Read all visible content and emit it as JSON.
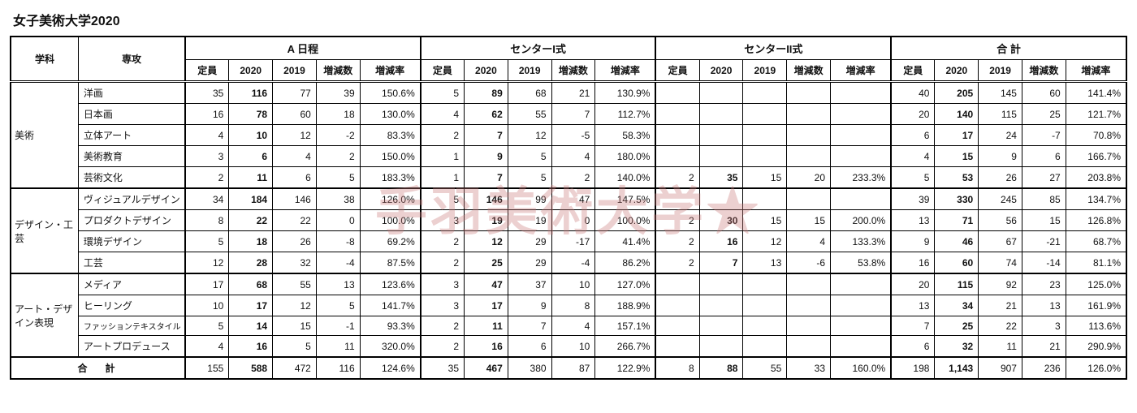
{
  "title": "女子美術大学2020",
  "watermark": "手羽美術大学★",
  "header": {
    "dept": "学科",
    "major": "専攻",
    "groups": [
      "A 日程",
      "センターI式",
      "センターII式",
      "合 計"
    ],
    "sub": [
      "定員",
      "2020",
      "2019",
      "増減数",
      "増減率"
    ]
  },
  "departments": [
    {
      "name": "美術",
      "rows": [
        {
          "major": "洋画",
          "a": [
            "35",
            "116",
            "77",
            "39",
            "150.6%"
          ],
          "c1": [
            "5",
            "89",
            "68",
            "21",
            "130.9%"
          ],
          "c2": [
            "",
            "",
            "",
            "",
            ""
          ],
          "t": [
            "40",
            "205",
            "145",
            "60",
            "141.4%"
          ]
        },
        {
          "major": "日本画",
          "a": [
            "16",
            "78",
            "60",
            "18",
            "130.0%"
          ],
          "c1": [
            "4",
            "62",
            "55",
            "7",
            "112.7%"
          ],
          "c2": [
            "",
            "",
            "",
            "",
            ""
          ],
          "t": [
            "20",
            "140",
            "115",
            "25",
            "121.7%"
          ]
        },
        {
          "major": "立体アート",
          "a": [
            "4",
            "10",
            "12",
            "-2",
            "83.3%"
          ],
          "c1": [
            "2",
            "7",
            "12",
            "-5",
            "58.3%"
          ],
          "c2": [
            "",
            "",
            "",
            "",
            ""
          ],
          "t": [
            "6",
            "17",
            "24",
            "-7",
            "70.8%"
          ]
        },
        {
          "major": "美術教育",
          "a": [
            "3",
            "6",
            "4",
            "2",
            "150.0%"
          ],
          "c1": [
            "1",
            "9",
            "5",
            "4",
            "180.0%"
          ],
          "c2": [
            "",
            "",
            "",
            "",
            ""
          ],
          "t": [
            "4",
            "15",
            "9",
            "6",
            "166.7%"
          ]
        },
        {
          "major": "芸術文化",
          "a": [
            "2",
            "11",
            "6",
            "5",
            "183.3%"
          ],
          "c1": [
            "1",
            "7",
            "5",
            "2",
            "140.0%"
          ],
          "c2": [
            "2",
            "35",
            "15",
            "20",
            "233.3%"
          ],
          "t": [
            "5",
            "53",
            "26",
            "27",
            "203.8%"
          ]
        }
      ]
    },
    {
      "name": "デザイン・工芸",
      "rows": [
        {
          "major": "ヴィジュアルデザイン",
          "a": [
            "34",
            "184",
            "146",
            "38",
            "126.0%"
          ],
          "c1": [
            "5",
            "146",
            "99",
            "47",
            "147.5%"
          ],
          "c2": [
            "",
            "",
            "",
            "",
            ""
          ],
          "t": [
            "39",
            "330",
            "245",
            "85",
            "134.7%"
          ]
        },
        {
          "major": "プロダクトデザイン",
          "a": [
            "8",
            "22",
            "22",
            "0",
            "100.0%"
          ],
          "c1": [
            "3",
            "19",
            "19",
            "0",
            "100.0%"
          ],
          "c2": [
            "2",
            "30",
            "15",
            "15",
            "200.0%"
          ],
          "t": [
            "13",
            "71",
            "56",
            "15",
            "126.8%"
          ]
        },
        {
          "major": "環境デザイン",
          "a": [
            "5",
            "18",
            "26",
            "-8",
            "69.2%"
          ],
          "c1": [
            "2",
            "12",
            "29",
            "-17",
            "41.4%"
          ],
          "c2": [
            "2",
            "16",
            "12",
            "4",
            "133.3%"
          ],
          "t": [
            "9",
            "46",
            "67",
            "-21",
            "68.7%"
          ]
        },
        {
          "major": "工芸",
          "a": [
            "12",
            "28",
            "32",
            "-4",
            "87.5%"
          ],
          "c1": [
            "2",
            "25",
            "29",
            "-4",
            "86.2%"
          ],
          "c2": [
            "2",
            "7",
            "13",
            "-6",
            "53.8%"
          ],
          "t": [
            "16",
            "60",
            "74",
            "-14",
            "81.1%"
          ]
        }
      ]
    },
    {
      "name": "アート・デザイン表現",
      "rows": [
        {
          "major": "メディア",
          "a": [
            "17",
            "68",
            "55",
            "13",
            "123.6%"
          ],
          "c1": [
            "3",
            "47",
            "37",
            "10",
            "127.0%"
          ],
          "c2": [
            "",
            "",
            "",
            "",
            ""
          ],
          "t": [
            "20",
            "115",
            "92",
            "23",
            "125.0%"
          ]
        },
        {
          "major": "ヒーリング",
          "a": [
            "10",
            "17",
            "12",
            "5",
            "141.7%"
          ],
          "c1": [
            "3",
            "17",
            "9",
            "8",
            "188.9%"
          ],
          "c2": [
            "",
            "",
            "",
            "",
            ""
          ],
          "t": [
            "13",
            "34",
            "21",
            "13",
            "161.9%"
          ]
        },
        {
          "major": "ファッションテキスタイル",
          "a": [
            "5",
            "14",
            "15",
            "-1",
            "93.3%"
          ],
          "c1": [
            "2",
            "11",
            "7",
            "4",
            "157.1%"
          ],
          "c2": [
            "",
            "",
            "",
            "",
            ""
          ],
          "t": [
            "7",
            "25",
            "22",
            "3",
            "113.6%"
          ]
        },
        {
          "major": "アートプロデュース",
          "a": [
            "4",
            "16",
            "5",
            "11",
            "320.0%"
          ],
          "c1": [
            "2",
            "16",
            "6",
            "10",
            "266.7%"
          ],
          "c2": [
            "",
            "",
            "",
            "",
            ""
          ],
          "t": [
            "6",
            "32",
            "11",
            "21",
            "290.9%"
          ]
        }
      ]
    }
  ],
  "total": {
    "label": "合計",
    "a": [
      "155",
      "588",
      "472",
      "116",
      "124.6%"
    ],
    "c1": [
      "35",
      "467",
      "380",
      "87",
      "122.9%"
    ],
    "c2": [
      "8",
      "88",
      "55",
      "33",
      "160.0%"
    ],
    "t": [
      "198",
      "1,143",
      "907",
      "236",
      "126.0%"
    ]
  },
  "boldCols": [
    1
  ]
}
